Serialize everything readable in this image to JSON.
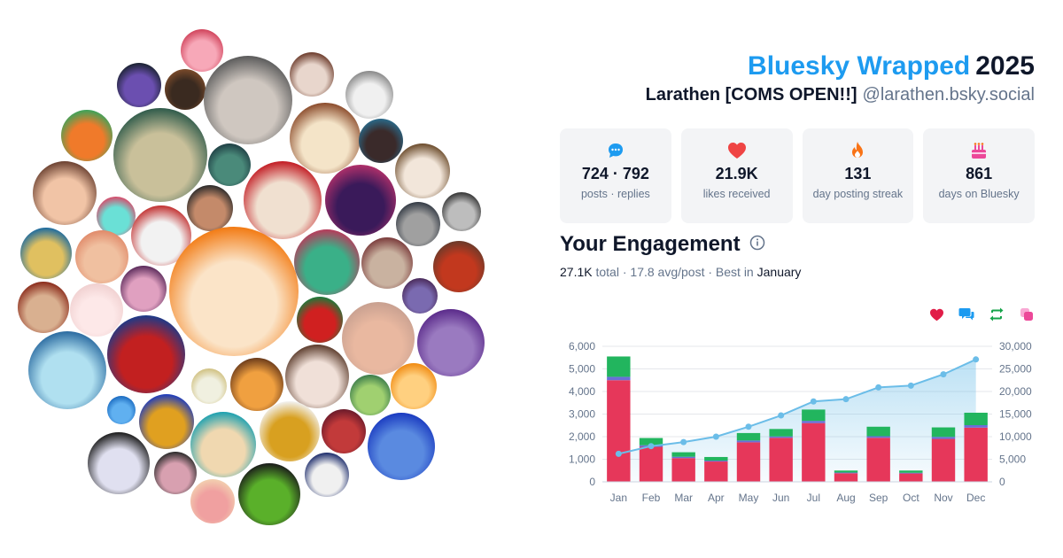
{
  "header": {
    "brand": "Bluesky Wrapped",
    "year": "2025",
    "display_name": "Larathen [COMS OPEN!!]",
    "handle": "@larathen.bsky.social"
  },
  "stats": [
    {
      "icon": "chat-bubble-icon",
      "value": "724 · 792",
      "label": "posts · replies",
      "color": "#1d9bf0"
    },
    {
      "icon": "heart-icon",
      "value": "21.9K",
      "label": "likes received",
      "color": "#ef4444"
    },
    {
      "icon": "flame-icon",
      "value": "131",
      "label": "day posting streak",
      "color": "#f97316"
    },
    {
      "icon": "cake-icon",
      "value": "861",
      "label": "days on Bluesky",
      "color": "#ec4899"
    }
  ],
  "engagement": {
    "title": "Your Engagement",
    "total_value": "27.1K",
    "total_label": "total",
    "avg_text": "17.8 avg/post",
    "best_label": "Best in",
    "best_month": "January"
  },
  "legend_icons": [
    {
      "icon": "heart-icon",
      "color": "#e11d48"
    },
    {
      "icon": "reply-icon",
      "color": "#1d9bf0"
    },
    {
      "icon": "repost-icon",
      "color": "#16a34a"
    },
    {
      "icon": "quote-icon",
      "color": "#ec4899"
    }
  ],
  "colors": {
    "likes": "#e6375a",
    "replies": "#6a6fd6",
    "reposts": "#22b55e",
    "cumulative": "#6bbde8"
  },
  "chart_data": {
    "type": "bar",
    "categories": [
      "Jan",
      "Feb",
      "Mar",
      "Apr",
      "May",
      "Jun",
      "Jul",
      "Aug",
      "Sep",
      "Oct",
      "Nov",
      "Dec"
    ],
    "stacked": true,
    "series": [
      {
        "name": "likes",
        "values": [
          4500,
          1550,
          1050,
          900,
          1750,
          1950,
          2600,
          380,
          1950,
          370,
          1900,
          2400
        ]
      },
      {
        "name": "replies",
        "values": [
          150,
          70,
          60,
          40,
          80,
          60,
          100,
          30,
          70,
          30,
          90,
          110
        ]
      },
      {
        "name": "reposts",
        "values": [
          900,
          320,
          200,
          160,
          330,
          330,
          500,
          90,
          420,
          100,
          420,
          550
        ]
      }
    ],
    "cumulative": [
      6200,
      7900,
      8800,
      10000,
      12200,
      14700,
      17800,
      18300,
      20900,
      21300,
      23800,
      27100
    ],
    "ylim": [
      0,
      6000
    ],
    "yticks": [
      "0",
      "1,000",
      "2,000",
      "3,000",
      "4,000",
      "5,000",
      "6,000"
    ],
    "y2lim": [
      0,
      30000
    ],
    "y2ticks": [
      "0",
      "5,000",
      "10,000",
      "15,000",
      "20,000",
      "25,000",
      "30,000"
    ],
    "grid": true
  }
}
